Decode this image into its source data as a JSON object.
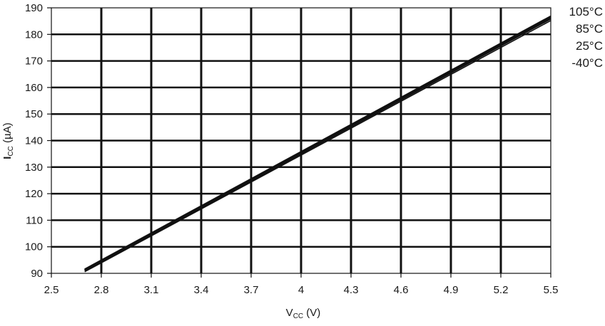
{
  "chart_data": {
    "type": "line",
    "title": "",
    "xlabel": {
      "main": "V",
      "sub": "CC",
      "unit": " (V)"
    },
    "ylabel": {
      "main": "I",
      "sub": "CC",
      "unit": " (µA)"
    },
    "xlim": [
      2.5,
      5.5
    ],
    "ylim": [
      90,
      190
    ],
    "x_ticks": [
      2.5,
      2.8,
      3.1,
      3.4,
      3.7,
      4.0,
      4.3,
      4.6,
      4.9,
      5.2,
      5.5
    ],
    "x_tick_labels": [
      "2.5",
      "2.8",
      "3.1",
      "3.4",
      "3.7",
      "4",
      "4.3",
      "4.6",
      "4.9",
      "5.2",
      "5.5"
    ],
    "y_ticks": [
      90,
      100,
      110,
      120,
      130,
      140,
      150,
      160,
      170,
      180,
      190
    ],
    "y_tick_labels": [
      "90",
      "100",
      "110",
      "120",
      "130",
      "140",
      "150",
      "160",
      "170",
      "180",
      "190"
    ],
    "grid": true,
    "legend_placement": "right",
    "series": [
      {
        "name": "105°C",
        "x": [
          2.7,
          5.5
        ],
        "y": [
          91.5,
          186.8
        ],
        "color": "#111111"
      },
      {
        "name": "85°C",
        "x": [
          2.7,
          5.5
        ],
        "y": [
          91.2,
          186.3
        ],
        "color": "#111111"
      },
      {
        "name": "25°C",
        "x": [
          2.7,
          5.5
        ],
        "y": [
          91.0,
          185.9
        ],
        "color": "#111111"
      },
      {
        "name": "-40°C",
        "x": [
          2.7,
          5.5
        ],
        "y": [
          90.6,
          185.2
        ],
        "color": "#111111"
      }
    ]
  }
}
